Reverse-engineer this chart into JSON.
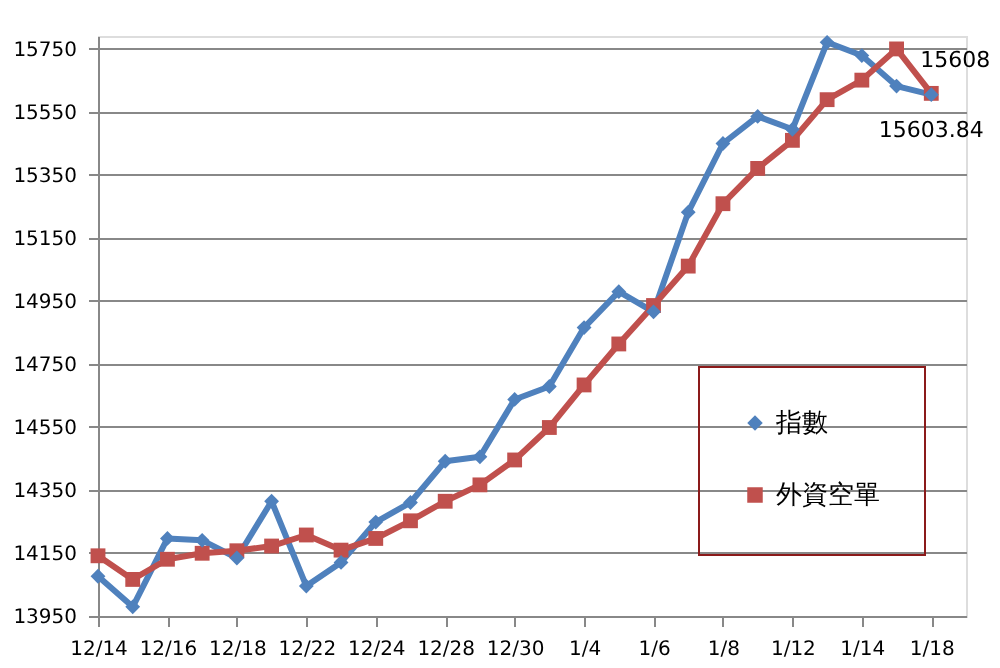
{
  "chart_data": {
    "type": "line",
    "categories": [
      "12/14",
      null,
      "12/16",
      null,
      "12/18",
      null,
      "12/22",
      null,
      "12/24",
      null,
      "12/28",
      null,
      "12/30",
      null,
      "1/4",
      null,
      "1/6",
      null,
      "1/8",
      null,
      "1/12",
      null,
      "1/14",
      null,
      "1/18"
    ],
    "series": [
      {
        "name": "指數",
        "color": "#4f81bd",
        "marker": "diamond",
        "values": [
          14076,
          13979,
          14196,
          14190,
          14134,
          14314,
          14045,
          14120,
          14248,
          14310,
          14441,
          14455,
          14637,
          14678,
          14865,
          14979,
          14915,
          15231,
          15449,
          15535,
          15494,
          15770,
          15728,
          15631,
          15603.84
        ]
      },
      {
        "name": "外資空單",
        "color": "#c0504d",
        "marker": "square",
        "values": [
          14141,
          14066,
          14130,
          14149,
          14157,
          14172,
          14207,
          14159,
          14196,
          14252,
          14314,
          14366,
          14445,
          14548,
          14683,
          14813,
          14935,
          15060,
          15258,
          15370,
          15459,
          15588,
          15650,
          15749,
          15608
        ]
      }
    ],
    "ylim": [
      13950,
      15790
    ],
    "yticks": [
      13950,
      14150,
      14350,
      14550,
      14750,
      14950,
      15150,
      15350,
      15550,
      15750
    ],
    "grid": "y",
    "legend": "right",
    "line_style": "solid",
    "annotations": [
      {
        "text": "15608",
        "x": "1/18",
        "y": 15608
      },
      {
        "text": "15603.84",
        "x": "1/18",
        "y": 15603.84
      }
    ]
  }
}
